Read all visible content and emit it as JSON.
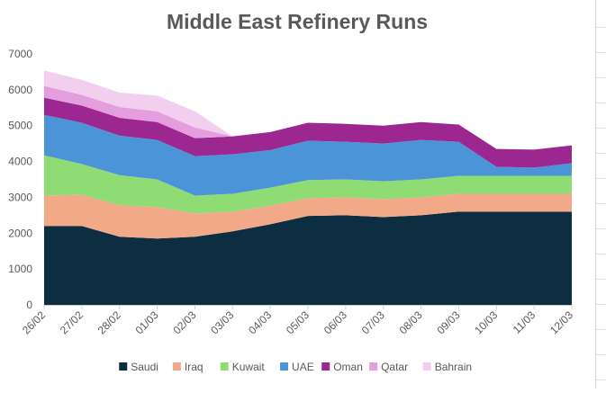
{
  "chart_data": {
    "type": "area",
    "stacked": true,
    "title": "Middle East Refinery Runs",
    "xlabel": "",
    "ylabel": "",
    "ylim": [
      0,
      7000
    ],
    "yticks": [
      0,
      1000,
      2000,
      3000,
      4000,
      5000,
      6000,
      7000
    ],
    "grid": false,
    "legend_position": "bottom",
    "categories": [
      "26/02",
      "27/02",
      "28/02",
      "01/03",
      "02/03",
      "03/03",
      "04/03",
      "05/03",
      "06/03",
      "07/03",
      "08/03",
      "09/03",
      "10/03",
      "11/03",
      "12/03"
    ],
    "series": [
      {
        "name": "Saudi",
        "color": "#0d2d40",
        "values": [
          2200,
          2200,
          1900,
          1850,
          1900,
          2050,
          2250,
          2480,
          2500,
          2450,
          2500,
          2600,
          2600,
          2600,
          2600
        ]
      },
      {
        "name": "Iraq",
        "color": "#f2a987",
        "values": [
          850,
          870,
          880,
          880,
          650,
          550,
          520,
          500,
          500,
          500,
          500,
          500,
          500,
          500,
          500
        ]
      },
      {
        "name": "Kuwait",
        "color": "#8edc73",
        "values": [
          1120,
          860,
          840,
          770,
          500,
          500,
          500,
          500,
          500,
          500,
          500,
          500,
          500,
          500,
          500
        ]
      },
      {
        "name": "UAE",
        "color": "#4c94d8",
        "values": [
          1130,
          1150,
          1100,
          1100,
          1100,
          1100,
          1050,
          1100,
          1050,
          1050,
          1100,
          950,
          250,
          230,
          350
        ]
      },
      {
        "name": "Oman",
        "color": "#9c2790",
        "values": [
          480,
          480,
          500,
          500,
          500,
          500,
          500,
          500,
          500,
          500,
          500,
          480,
          500,
          500,
          500
        ]
      },
      {
        "name": "Qatar",
        "color": "#e59edd",
        "values": [
          330,
          300,
          300,
          300,
          300,
          0,
          0,
          0,
          0,
          0,
          0,
          0,
          0,
          0,
          0
        ]
      },
      {
        "name": "Bahrain",
        "color": "#f2cfee",
        "values": [
          430,
          420,
          400,
          440,
          450,
          0,
          0,
          0,
          0,
          0,
          0,
          0,
          0,
          0,
          0
        ]
      }
    ]
  }
}
